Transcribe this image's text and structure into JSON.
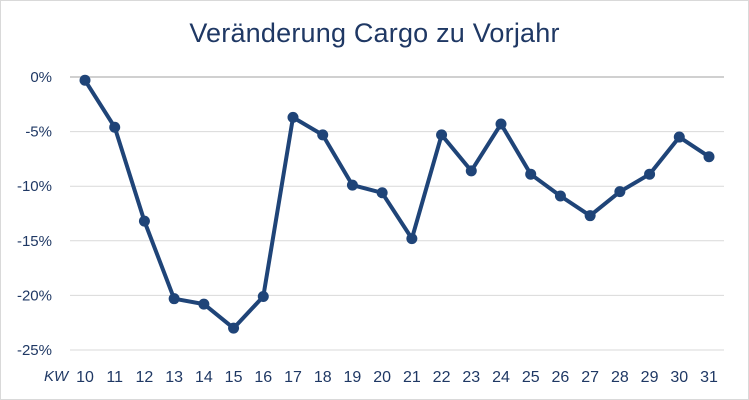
{
  "chart_data": {
    "type": "line",
    "title": "Veränderung Cargo zu Vorjahr",
    "x_unit_label": "KW",
    "categories": [
      "10",
      "11",
      "12",
      "13",
      "14",
      "15",
      "16",
      "17",
      "18",
      "19",
      "20",
      "21",
      "22",
      "23",
      "24",
      "25",
      "26",
      "27",
      "28",
      "29",
      "30",
      "31"
    ],
    "values": [
      -0.3,
      -4.6,
      -13.2,
      -20.3,
      -20.8,
      -23.0,
      -20.1,
      -3.7,
      -5.3,
      -9.9,
      -10.6,
      -14.8,
      -5.3,
      -8.6,
      -4.3,
      -8.9,
      -10.9,
      -12.7,
      -10.5,
      -8.9,
      -5.5,
      -7.3
    ],
    "y_unit": "%",
    "ylim": [
      -25,
      0
    ],
    "y_ticks": [
      0,
      -5,
      -10,
      -15,
      -20,
      -25
    ],
    "y_tick_labels": [
      "0%",
      "-5%",
      "-10%",
      "-15%",
      "-20%",
      "-25%"
    ],
    "grid": true,
    "legend": "none",
    "line_color": "#1f4478",
    "grid_color": "#d9d9d9",
    "zero_line_color": "#d0d0d0"
  }
}
